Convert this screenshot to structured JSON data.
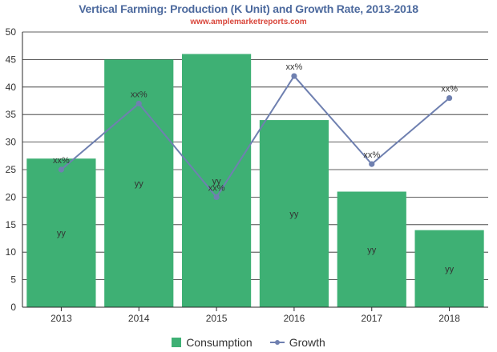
{
  "chart_data": {
    "type": "bar",
    "title": "Vertical Farming: Production (K Unit) and Growth Rate, 2013-2018",
    "subtitle": "www.amplemarketreports.com",
    "categories": [
      "2013",
      "2014",
      "2015",
      "2016",
      "2017",
      "2018"
    ],
    "y_ticks": [
      "0",
      "5",
      "10",
      "15",
      "20",
      "25",
      "30",
      "35",
      "40",
      "45",
      "50"
    ],
    "ylim": [
      0,
      50
    ],
    "grid": true,
    "legend_position": "bottom",
    "series": [
      {
        "name": "Consumption",
        "kind": "bar",
        "color": "#3eb074",
        "values": [
          27,
          45,
          46,
          34,
          21,
          14
        ],
        "labels": [
          "yy",
          "yy",
          "yy",
          "yy",
          "yy",
          "yy"
        ]
      },
      {
        "name": "Growth",
        "kind": "line",
        "color": "#6f80b0",
        "values": [
          25,
          37,
          20,
          42,
          26,
          38
        ],
        "labels": [
          "xx%",
          "xx%",
          "xx%",
          "xx%",
          "xx%",
          "xx%"
        ]
      }
    ]
  }
}
